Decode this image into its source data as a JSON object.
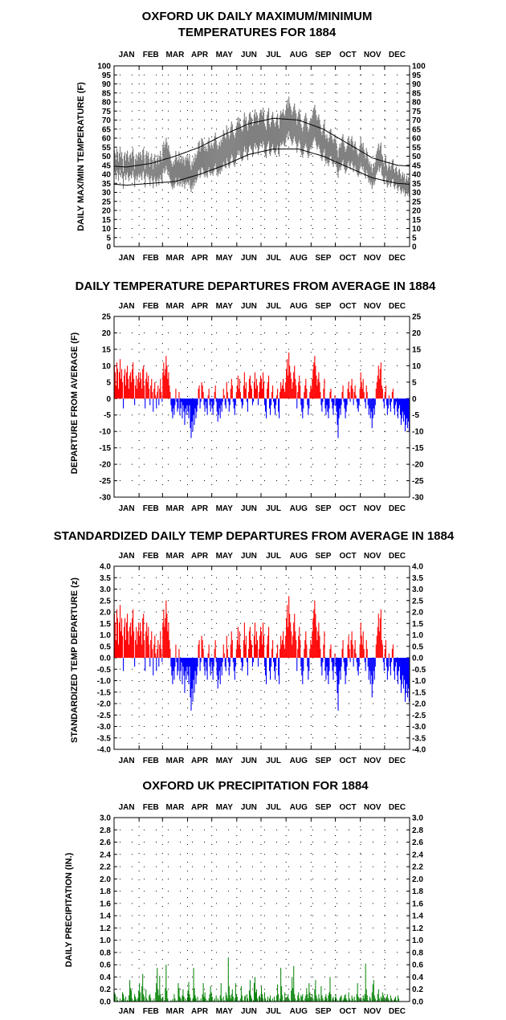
{
  "months": [
    "JAN",
    "FEB",
    "MAR",
    "APR",
    "MAY",
    "JUN",
    "JUL",
    "AUG",
    "SEP",
    "OCT",
    "NOV",
    "DEC"
  ],
  "chart_data": [
    {
      "id": "maxmin",
      "type": "line",
      "title_lines": [
        "OXFORD UK DAILY MAXIMUM/MINIMUM",
        "TEMPERATURES FOR 1884"
      ],
      "ylabel": "DAILY MAX/MIN TEMPERATURE  (F)",
      "ylim": [
        0,
        100
      ],
      "yticks": [
        "0",
        "5",
        "10",
        "15",
        "20",
        "25",
        "30",
        "35",
        "40",
        "45",
        "50",
        "55",
        "60",
        "65",
        "70",
        "75",
        "80",
        "85",
        "90",
        "95",
        "100"
      ],
      "grid": "dotted",
      "colors": {
        "observed": "#808080",
        "normal": "#000000"
      },
      "normal_max_by_month": [
        44,
        46,
        50,
        55,
        62,
        68,
        71,
        70,
        65,
        57,
        49,
        45
      ],
      "normal_min_by_month": [
        34,
        35,
        36,
        40,
        45,
        51,
        54,
        54,
        50,
        44,
        38,
        35
      ],
      "departure_series_used": "departures"
    },
    {
      "id": "departures",
      "type": "bar",
      "title": "DAILY TEMPERATURE DEPARTURES FROM AVERAGE IN 1884",
      "ylabel": "DEPARTURE FROM AVERAGE  (F)",
      "ylim": [
        -30,
        25
      ],
      "yticks": [
        "-30",
        "-25",
        "-20",
        "-15",
        "-10",
        "-5",
        "0",
        "5",
        "10",
        "15",
        "20",
        "25"
      ],
      "grid": "dotted",
      "colors": {
        "positive": "#ff0000",
        "negative": "#0000ff"
      },
      "monthly_peaks": [
        {
          "month": "JAN",
          "values": [
            10,
            8,
            4,
            11,
            9,
            3,
            8,
            12,
            6,
            9,
            5,
            -3,
            7,
            9,
            4,
            8,
            10,
            6,
            3,
            7,
            8,
            5,
            9,
            11,
            6,
            -2,
            4,
            7,
            3,
            6,
            8
          ]
        },
        {
          "month": "FEB",
          "values": [
            5,
            8,
            6,
            3,
            9,
            10,
            4,
            -3,
            6,
            8,
            5,
            7,
            3,
            -2,
            4,
            6,
            2,
            -4,
            3,
            5,
            1,
            -3,
            2,
            4,
            -2,
            3,
            6,
            2,
            -1
          ]
        },
        {
          "month": "MAR",
          "values": [
            8,
            11,
            7,
            9,
            13,
            10,
            6,
            8,
            4,
            2,
            -2,
            -4,
            -6,
            -3,
            -5,
            -2,
            3,
            -1,
            -4,
            -3,
            2,
            -5,
            -3,
            -1,
            -6,
            -2,
            -4,
            -8,
            -3,
            -5,
            -2
          ]
        },
        {
          "month": "APR",
          "values": [
            -4,
            -6,
            -2,
            -9,
            -12,
            -7,
            -10,
            -5,
            -8,
            -3,
            -6,
            -4,
            -2,
            3,
            4,
            -3,
            -1,
            5,
            4,
            2,
            -2,
            -4,
            -1,
            -3,
            -5,
            1,
            3,
            -2,
            -4,
            -1
          ]
        },
        {
          "month": "MAY",
          "values": [
            -3,
            -5,
            -2,
            2,
            4,
            -1,
            -4,
            -7,
            -5,
            -3,
            -6,
            -2,
            -4,
            -1,
            3,
            1,
            -2,
            -3,
            5,
            2,
            -1,
            -4,
            -2,
            3,
            6,
            4,
            -1,
            -3,
            -5,
            -2,
            2
          ]
        },
        {
          "month": "JUN",
          "values": [
            4,
            7,
            3,
            6,
            2,
            -1,
            -3,
            -2,
            4,
            8,
            3,
            5,
            -1,
            -4,
            2,
            6,
            7,
            4,
            3,
            -2,
            -1,
            5,
            8,
            3,
            6,
            4,
            -2,
            2,
            5,
            7
          ]
        },
        {
          "month": "JUL",
          "values": [
            6,
            3,
            8,
            5,
            -2,
            -4,
            -6,
            3,
            5,
            7,
            -3,
            -5,
            -2,
            2,
            4,
            -1,
            -3,
            -5,
            -2,
            1,
            3,
            -4,
            -6,
            2,
            5,
            3,
            4,
            6,
            3,
            2,
            5
          ]
        },
        {
          "month": "AUG",
          "values": [
            9,
            12,
            7,
            14,
            10,
            8,
            6,
            3,
            5,
            8,
            10,
            6,
            4,
            -3,
            2,
            5,
            7,
            4,
            -2,
            -4,
            -6,
            -3,
            2,
            4,
            6,
            3,
            -2,
            -5,
            -3,
            2,
            4
          ]
        },
        {
          "month": "SEP",
          "values": [
            3,
            6,
            9,
            11,
            13,
            10,
            7,
            4,
            6,
            8,
            5,
            2,
            -2,
            -4,
            -1,
            3,
            6,
            -3,
            -5,
            -2,
            -4,
            -6,
            -3,
            2,
            3,
            -1,
            -3,
            -5,
            -2,
            1
          ]
        },
        {
          "month": "OCT",
          "values": [
            -2,
            -4,
            -8,
            -12,
            -6,
            -3,
            -5,
            -2,
            2,
            4,
            -1,
            -3,
            -6,
            -4,
            -2,
            3,
            5,
            2,
            -1,
            4,
            6,
            3,
            -2,
            2,
            4,
            1,
            -1,
            -3,
            -4,
            -2,
            3
          ]
        },
        {
          "month": "NOV",
          "values": [
            8,
            5,
            3,
            6,
            2,
            -1,
            -3,
            4,
            2,
            -2,
            -5,
            -3,
            -6,
            -4,
            -9,
            -6,
            -3,
            -5,
            -2,
            3,
            5,
            7,
            10,
            6,
            9,
            11,
            4,
            3,
            -1,
            -3
          ]
        },
        {
          "month": "DEC",
          "values": [
            2,
            4,
            -2,
            -5,
            -3,
            1,
            -2,
            -4,
            -1,
            2,
            3,
            -3,
            -5,
            -2,
            -1,
            -4,
            -6,
            -3,
            -2,
            -5,
            -8,
            -6,
            -4,
            -7,
            -5,
            -10,
            -8,
            -6,
            -9,
            -7,
            -10
          ]
        }
      ]
    },
    {
      "id": "standardized",
      "type": "bar",
      "title": "STANDARDIZED DAILY TEMP DEPARTURES FROM AVERAGE IN 1884",
      "ylabel": "STANDARDIZED TEMP DEPARTURE  (z)",
      "ylim": [
        -4.0,
        4.0
      ],
      "yticks": [
        "-4.0",
        "-3.5",
        "-3.0",
        "-2.5",
        "-2.0",
        "-1.5",
        "-1.0",
        "-0.5",
        "0.0",
        "0.5",
        "1.0",
        "1.5",
        "2.0",
        "2.5",
        "3.0",
        "3.5",
        "4.0"
      ],
      "grid": "dotted",
      "colors": {
        "positive": "#ff0000",
        "negative": "#0000ff"
      },
      "derived_from": "departures",
      "scale_divisor": 5.2
    },
    {
      "id": "precip",
      "type": "bar",
      "title": "OXFORD UK PRECIPITATION FOR 1884",
      "ylabel": "DAILY PRECIPITATION (IN.)",
      "ylim": [
        0.0,
        3.0
      ],
      "yticks": [
        "0.0",
        "0.2",
        "0.4",
        "0.6",
        "0.8",
        "1.0",
        "1.2",
        "1.4",
        "1.6",
        "1.8",
        "2.0",
        "2.2",
        "2.4",
        "2.6",
        "2.8",
        "3.0"
      ],
      "grid": "dotted",
      "colors": {
        "bar": "#008000"
      },
      "daily": [
        0.15,
        0.12,
        0,
        0.08,
        0.02,
        0,
        0,
        0.05,
        0,
        0.02,
        0.15,
        0.12,
        0.05,
        0,
        0.08,
        0,
        0.03,
        0,
        0.1,
        0.35,
        0.22,
        0.18,
        0.05,
        0,
        0.02,
        0.12,
        0.08,
        0.04,
        0,
        0.06,
        0.18,
        0.3,
        0.15,
        0,
        0.25,
        0.45,
        0.12,
        0.08,
        0,
        0.2,
        0.05,
        0.02,
        0,
        0.1,
        0.12,
        0.06,
        0,
        0.02,
        0,
        0.05,
        0,
        0.15,
        0.3,
        0.55,
        0.2,
        0.1,
        0.42,
        0.12,
        0.05,
        0,
        0.08,
        0,
        0.02,
        0.22,
        0.6,
        0.18,
        0.05,
        0,
        0,
        0,
        0.02,
        0,
        0.04,
        0,
        0.12,
        0.05,
        0,
        0.02,
        0,
        0.3,
        0.22,
        0.08,
        0.05,
        0,
        0.1,
        0.2,
        0.08,
        0,
        0.05,
        0,
        0.02,
        0.18,
        0.32,
        0.12,
        0.06,
        0,
        0,
        0.05,
        0.55,
        0.22,
        0.1,
        0.05,
        0,
        0.08,
        0,
        0.02,
        0,
        0.05,
        0,
        0.12,
        0.3,
        0.08,
        0.15,
        0.05,
        0,
        0.02,
        0,
        0.05,
        0.12,
        0.25,
        0.15,
        0.08,
        0,
        0.02,
        0.05,
        0,
        0.1,
        0,
        0.05,
        0.02,
        0,
        0.1,
        0.3,
        0.05,
        0,
        0.08,
        0.02,
        0,
        0.15,
        0.1,
        0.05,
        0.72,
        0.25,
        0.1,
        0.05,
        0.12,
        0.2,
        0.08,
        0,
        0.05,
        0.3,
        0.12,
        0.08,
        0,
        0.02,
        0,
        0.05,
        0.25,
        0.1,
        0.02,
        0,
        0.08,
        0.1,
        0,
        0.12,
        0.05,
        0,
        0.18,
        0.35,
        0.1,
        0.05,
        0,
        0.02,
        0.3,
        0.4,
        0.15,
        0.2,
        0.05,
        0,
        0.08,
        0.1,
        0,
        0.25,
        0.12,
        0.05,
        0,
        0.15,
        0.05,
        0,
        0.02,
        0.08,
        0,
        0.05,
        0.1,
        0.02,
        0,
        0.05,
        0,
        0.08,
        0.02,
        0,
        0.1,
        0.28,
        0.12,
        0,
        0.05,
        0.55,
        0.25,
        0.1,
        0,
        0.02,
        0.15,
        0.05,
        0,
        0.08,
        0.12,
        0.05,
        0.02,
        0,
        0.18,
        0.4,
        0.22,
        0.58,
        0.12,
        0.05,
        0,
        0.02,
        0.1,
        0.15,
        0.05,
        0,
        0.1,
        0.08,
        0.12,
        0.02,
        0,
        0.05,
        0.1,
        0.22,
        0.12,
        0.05,
        0.3,
        0.15,
        0.08,
        0,
        0.12,
        0.05,
        0,
        0.2,
        0.35,
        0.1,
        0.05,
        0,
        0.12,
        0.05,
        0,
        0.25,
        0.1,
        0.05,
        0,
        0.02,
        0.08,
        0.12,
        0.05,
        0,
        0.1,
        0.15,
        0.4,
        0.12,
        0,
        0.05,
        0.08,
        0.02,
        0,
        0.12,
        0.05,
        0,
        0.02,
        0,
        0.05,
        0.08,
        0.1,
        0,
        0.02,
        0.05,
        0.1,
        0.12,
        0.05,
        0.02,
        0,
        0.15,
        0.05,
        0.02,
        0,
        0.1,
        0.05,
        0,
        0.08,
        0.02,
        0,
        0.12,
        0.3,
        0.08,
        0.05,
        0,
        0.02,
        0.05,
        0,
        0.1,
        0.05,
        0.12,
        0.62,
        0.2,
        0.1,
        0.02,
        0,
        0.08,
        0.05,
        0,
        0.15,
        0.28,
        0.35,
        0.1,
        0.05,
        0,
        0.02,
        0.12,
        0.2,
        0.05,
        0,
        0.08,
        0.05,
        0.15,
        0.1,
        0.02,
        0,
        0.05,
        0.08,
        0.12,
        0.05,
        0.02,
        0,
        0.1,
        0.05,
        0.02,
        0,
        0.03,
        0.05,
        0.08,
        0.02,
        0,
        0.1,
        0.05
      ]
    }
  ]
}
